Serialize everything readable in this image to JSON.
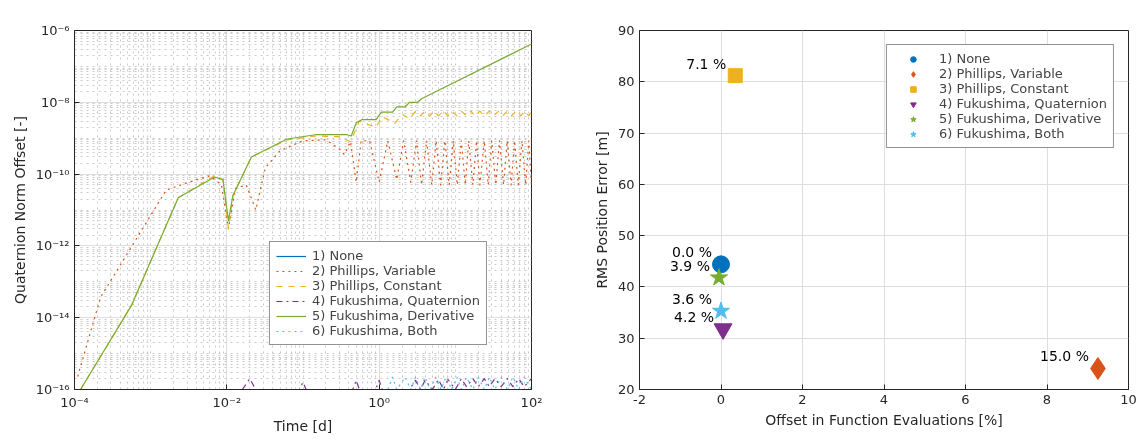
{
  "chart_data": [
    {
      "type": "line",
      "xlabel": "Time [d]",
      "ylabel": "Quaternion Norm Offset [-]",
      "log": "xy",
      "grid": true,
      "legend": "bottom right",
      "xlim": [
        0.0001,
        100
      ],
      "ylim": [
        1e-16,
        1e-06
      ],
      "xticks": [
        {
          "value": 0.0001,
          "label": "10⁻⁴"
        },
        {
          "value": 0.01,
          "label": "10⁻²"
        },
        {
          "value": 1,
          "label": "10⁰"
        },
        {
          "value": 100,
          "label": "10²"
        }
      ],
      "yticks": [
        {
          "value": 1e-16,
          "label": "10⁻¹⁶"
        },
        {
          "value": 1e-14,
          "label": "10⁻¹⁴"
        },
        {
          "value": 1e-12,
          "label": "10⁻¹²"
        },
        {
          "value": 1e-10,
          "label": "10⁻¹⁰"
        },
        {
          "value": 1e-08,
          "label": "10⁻⁸"
        },
        {
          "value": 1e-06,
          "label": "10⁻⁶"
        }
      ],
      "series": [
        {
          "name": "1) None",
          "color": "#0072bd",
          "line_style": "solid",
          "x": [
            null
          ],
          "values": [
            null
          ]
        },
        {
          "name": "2) Phillips, Variable",
          "color": "#d95319",
          "line_style": "dotted",
          "x": [
            0.00011,
            0.00022,
            0.0016,
            0.0029,
            0.006,
            0.0085,
            0.0105,
            0.013,
            0.018,
            0.024,
            0.032,
            0.05,
            0.1,
            0.2,
            0.3,
            0.35,
            0.42,
            0.5,
            0.58,
            0.75,
            1.0,
            1.3,
            1.7,
            2.1,
            2.6,
            3.1,
            3.6,
            4.2,
            4.9,
            5.6,
            6.4,
            7.3,
            8.3,
            9.4,
            10.6,
            12,
            13.5,
            15,
            17,
            19,
            21,
            24,
            27,
            30,
            34,
            38,
            43,
            48,
            54,
            60,
            67,
            75,
            84,
            92,
            100
          ],
          "values": [
            2.3e-16,
            3.7e-14,
            3.6e-11,
            5.6e-11,
            9e-11,
            5e-11,
            3e-12,
            4e-11,
            5e-11,
            1e-11,
            1.5e-10,
            4.5e-10,
            8.5e-10,
            9e-10,
            5e-10,
            3.5e-10,
            8e-10,
            6e-11,
            8.5e-10,
            8.5e-10,
            6e-11,
            8.5e-10,
            7e-11,
            8.5e-10,
            6e-11,
            8.5e-10,
            5e-11,
            8.5e-10,
            5e-11,
            8.5e-10,
            5e-11,
            8.5e-10,
            5e-11,
            8.5e-10,
            5e-11,
            8.5e-10,
            5e-11,
            8.5e-10,
            5e-11,
            8.5e-10,
            5e-11,
            8.5e-10,
            5e-11,
            8.5e-10,
            5e-11,
            8.5e-10,
            5e-11,
            8.5e-10,
            5e-11,
            8.5e-10,
            5e-11,
            8.5e-10,
            5e-11,
            8.5e-10,
            5e-11
          ]
        },
        {
          "name": "3) Phillips, Constant",
          "color": "#edb120",
          "line_style": "dashed",
          "x": [
            0.00012,
            0.00056,
            0.0023,
            0.0069,
            0.0089,
            0.0105,
            0.012,
            0.021,
            0.062,
            0.145,
            0.3,
            0.42,
            0.55,
            0.9,
            1.1,
            1.6,
            2.0,
            2.5,
            3,
            3.5,
            4,
            4.6,
            5.3,
            6,
            7,
            8,
            9,
            10.5,
            12,
            14,
            16,
            18,
            21,
            24,
            28,
            32,
            37,
            42,
            48,
            55,
            63,
            72,
            82,
            92,
            100
          ],
          "values": [
            1e-16,
            2.2e-14,
            2.2e-11,
            9e-11,
            7e-11,
            3e-12,
            2.5e-11,
            3e-10,
            9e-10,
            1.15e-09,
            1.1e-09,
            8e-10,
            3e-09,
            2e-09,
            4e-09,
            2.6e-09,
            4.6e-09,
            3.5e-09,
            5.7e-09,
            4.2e-09,
            5.7e-09,
            4.2e-09,
            5.7e-09,
            4.2e-09,
            5.7e-09,
            4.2e-09,
            5.7e-09,
            4.2e-09,
            5.7e-09,
            4.2e-09,
            5.7e-09,
            4.2e-09,
            5.7e-09,
            4.2e-09,
            5.7e-09,
            4.2e-09,
            5.7e-09,
            4.2e-09,
            5.7e-09,
            4.2e-09,
            5.7e-09,
            4.2e-09,
            5.7e-09,
            4.2e-09,
            5.7e-09
          ]
        },
        {
          "name": "4) Fukushima, Quaternion",
          "color": "#7e2f8e",
          "line_style": "dashdot",
          "x": [
            0.016,
            0.02,
            0.024,
            0.09,
            0.1,
            0.11,
            0.45,
            0.5,
            0.55,
            0.9,
            1.0,
            1.1,
            2.5,
            3,
            3.5,
            4,
            5,
            6,
            7,
            8,
            10,
            12,
            14,
            17,
            20,
            24,
            28,
            33,
            40,
            48,
            57,
            68,
            80,
            100
          ],
          "values": [
            1e-16,
            2e-16,
            1e-16,
            1e-16,
            1.6e-16,
            1e-16,
            1e-16,
            1.8e-16,
            1e-16,
            1e-16,
            1.8e-16,
            1e-16,
            1e-16,
            1.8e-16,
            1e-16,
            1.8e-16,
            1e-16,
            1.9e-16,
            1e-16,
            1.9e-16,
            1e-16,
            2e-16,
            1.2e-16,
            2e-16,
            1.2e-16,
            2e-16,
            1.2e-16,
            2e-16,
            1.2e-16,
            2e-16,
            1.2e-16,
            2e-16,
            1.2e-16,
            2e-16
          ]
        },
        {
          "name": "5) Fukushima, Derivative",
          "color": "#77ac30",
          "line_style": "solid",
          "x": [
            0.00012,
            0.00056,
            0.0023,
            0.0069,
            0.0089,
            0.0105,
            0.012,
            0.021,
            0.062,
            0.145,
            0.38,
            0.43,
            0.5,
            0.6,
            0.91,
            1.07,
            1.5,
            1.7,
            2.2,
            2.5,
            3.2,
            3.6,
            100
          ],
          "values": [
            1e-16,
            2.2e-14,
            2.2e-11,
            8.3e-11,
            7e-11,
            5e-12,
            2.5e-11,
            3e-10,
            9.5e-10,
            1.25e-09,
            1.25e-09,
            1.15e-09,
            2.7e-09,
            3.3e-09,
            3.3e-09,
            5.3e-09,
            5.3e-09,
            7.5e-09,
            7.5e-09,
            1e-08,
            1e-08,
            1.25e-08,
            4.2e-07
          ]
        },
        {
          "name": "6) Fukushima, Both",
          "color": "#4dbeee",
          "line_style": "dotted",
          "x": [
            1.3,
            1.5,
            1.7,
            2.2,
            2.6,
            3,
            3.5,
            4,
            4.7,
            5.5,
            6.5,
            7.5,
            9,
            10.5,
            12,
            14,
            17,
            20,
            24,
            28,
            33,
            40,
            48,
            57,
            68,
            80,
            100
          ],
          "values": [
            1e-16,
            2.2e-16,
            1e-16,
            2.2e-16,
            1e-16,
            2.2e-16,
            1e-16,
            2.2e-16,
            1e-16,
            2.2e-16,
            1e-16,
            2.2e-16,
            1e-16,
            2.2e-16,
            1e-16,
            2.2e-16,
            1e-16,
            2.2e-16,
            1e-16,
            2.2e-16,
            1e-16,
            2.2e-16,
            1e-16,
            2.2e-16,
            1e-16,
            2.2e-16,
            1e-16
          ]
        }
      ]
    },
    {
      "type": "scatter",
      "xlabel": "Offset in Function Evaluations [%]",
      "ylabel": "RMS Position Error [m]",
      "grid": true,
      "legend": "top right",
      "xlim": [
        -2,
        10
      ],
      "ylim": [
        20,
        90
      ],
      "xticks": [
        -2,
        0,
        2,
        4,
        6,
        8,
        10
      ],
      "yticks": [
        20,
        30,
        40,
        50,
        60,
        70,
        80,
        90
      ],
      "annotations": [
        {
          "text": "0.0 %",
          "x": 0,
          "y": 44.4
        },
        {
          "text": "15.0 %",
          "x": 9.25,
          "y": 24.1
        },
        {
          "text": "7.1 %",
          "x": 0.35,
          "y": 81.2
        },
        {
          "text": "4.2 %",
          "x": 0.05,
          "y": 31.8
        },
        {
          "text": "3.9 %",
          "x": -0.05,
          "y": 41.8
        },
        {
          "text": "3.6 %",
          "x": 0,
          "y": 35.3
        }
      ],
      "series": [
        {
          "name": "1) None",
          "color": "#0072bd",
          "marker": "circle",
          "x": [
            0
          ],
          "values": [
            44.4
          ]
        },
        {
          "name": "2) Phillips, Variable",
          "color": "#d95319",
          "marker": "diamond",
          "x": [
            9.25
          ],
          "values": [
            24.1
          ]
        },
        {
          "name": "3) Phillips, Constant",
          "color": "#edb120",
          "marker": "square",
          "x": [
            0.35
          ],
          "values": [
            81.2
          ]
        },
        {
          "name": "4) Fukushima, Quaternion",
          "color": "#7e2f8e",
          "marker": "triangle_down",
          "x": [
            0.05
          ],
          "values": [
            31.8
          ]
        },
        {
          "name": "5) Fukushima, Derivative",
          "color": "#77ac30",
          "marker": "star",
          "x": [
            -0.05
          ],
          "values": [
            41.8
          ]
        },
        {
          "name": "6) Fukushima, Both",
          "color": "#4dbeee",
          "marker": "star",
          "x": [
            0
          ],
          "values": [
            35.3
          ]
        }
      ]
    }
  ]
}
